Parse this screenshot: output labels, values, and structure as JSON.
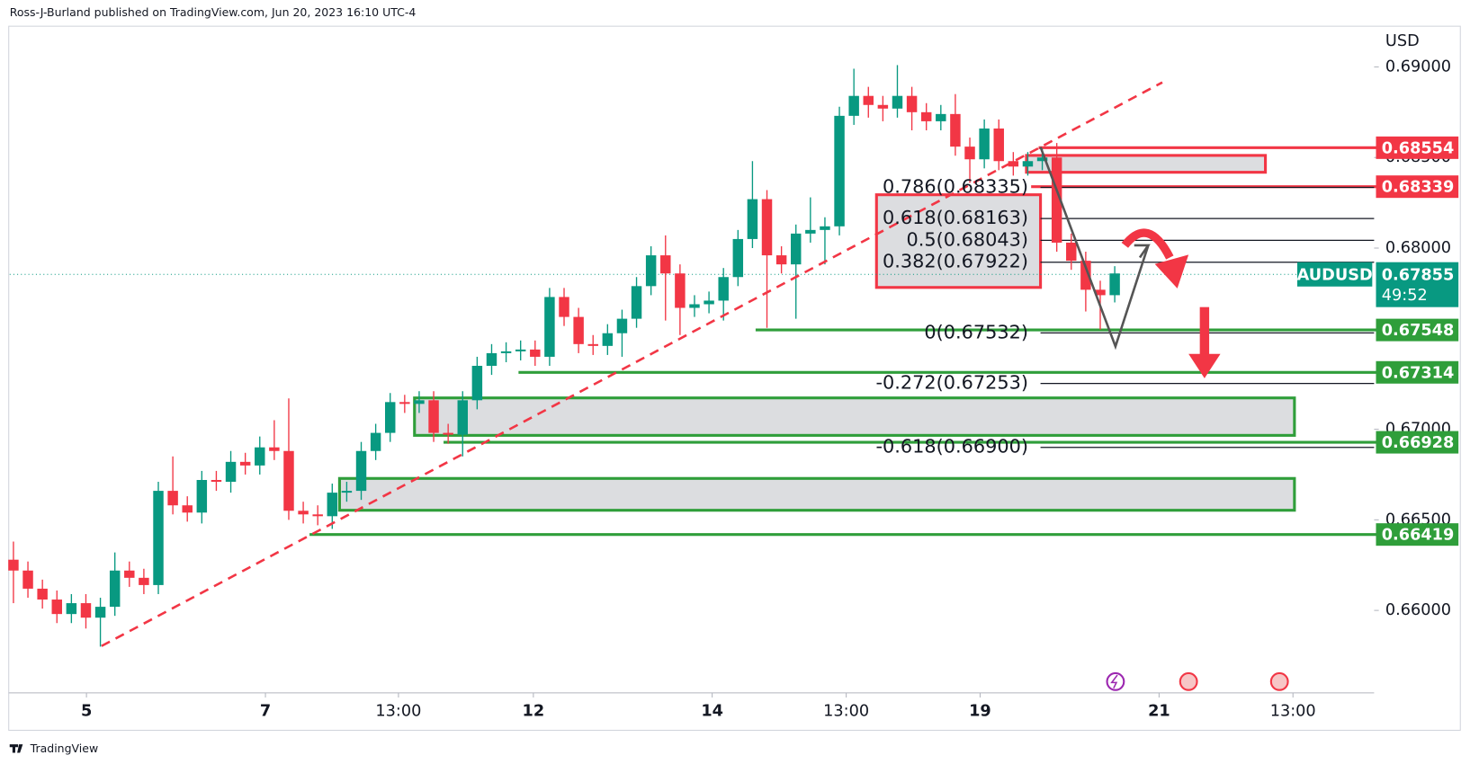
{
  "header": "Ross-J-Burland published on TradingView.com, Jun 20, 2023 16:10 UTC-4",
  "footer": "TradingView",
  "chart_data": {
    "type": "candlestick",
    "symbol": "AUDUSD",
    "currency": "USD",
    "countdown": "49:52",
    "last_price": 0.67855,
    "up_color": "#089981",
    "down_color": "#f23645",
    "x": [
      0,
      1,
      2,
      3,
      4,
      5,
      6,
      7,
      8,
      9,
      10,
      11,
      12,
      13,
      14,
      15,
      16,
      17,
      18,
      19,
      20,
      21,
      22,
      23,
      24,
      25,
      26,
      27,
      28,
      29,
      30,
      31,
      32,
      33,
      34,
      35,
      36,
      37,
      38,
      39,
      40,
      41,
      42,
      43,
      44,
      45,
      46,
      47,
      48,
      49,
      50,
      51,
      52,
      53,
      54,
      55,
      56,
      57,
      58,
      59,
      60,
      61,
      62,
      63,
      64,
      65,
      66,
      67,
      68,
      69,
      70,
      71,
      72,
      73,
      74,
      75,
      76
    ],
    "open": [
      0.6628,
      0.6622,
      0.6612,
      0.6606,
      0.6598,
      0.6604,
      0.6596,
      0.6602,
      0.6622,
      0.6618,
      0.6614,
      0.6666,
      0.6658,
      0.6654,
      0.6672,
      0.6671,
      0.6682,
      0.668,
      0.669,
      0.6688,
      0.6655,
      0.6653,
      0.6652,
      0.6665,
      0.6666,
      0.6688,
      0.6698,
      0.6715,
      0.6714,
      0.6716,
      0.6698,
      0.6697,
      0.6716,
      0.6735,
      0.6742,
      0.6743,
      0.6744,
      0.674,
      0.6773,
      0.6762,
      0.6747,
      0.6746,
      0.6753,
      0.6761,
      0.6779,
      0.6796,
      0.6786,
      0.6767,
      0.6769,
      0.6771,
      0.6784,
      0.6805,
      0.6827,
      0.6796,
      0.6791,
      0.6808,
      0.681,
      0.6812,
      0.6873,
      0.6884,
      0.6879,
      0.6877,
      0.6884,
      0.6875,
      0.687,
      0.6874,
      0.6856,
      0.6849,
      0.6866,
      0.6848,
      0.6845,
      0.6848,
      0.685,
      0.6803,
      0.6793,
      0.6777,
      0.6774
    ],
    "high": [
      0.6638,
      0.6627,
      0.6617,
      0.6611,
      0.6609,
      0.6609,
      0.6607,
      0.6632,
      0.6627,
      0.6623,
      0.6671,
      0.6685,
      0.6663,
      0.6677,
      0.6677,
      0.6688,
      0.6687,
      0.6696,
      0.6705,
      0.6717,
      0.666,
      0.6658,
      0.667,
      0.6671,
      0.6693,
      0.6703,
      0.672,
      0.6719,
      0.6721,
      0.6721,
      0.6703,
      0.6721,
      0.674,
      0.6747,
      0.6748,
      0.6749,
      0.6749,
      0.6778,
      0.6778,
      0.6767,
      0.6752,
      0.6758,
      0.6766,
      0.6784,
      0.6801,
      0.6807,
      0.6791,
      0.6774,
      0.6776,
      0.6789,
      0.681,
      0.6848,
      0.6832,
      0.6801,
      0.6813,
      0.6828,
      0.6817,
      0.6878,
      0.6899,
      0.6889,
      0.6884,
      0.6901,
      0.6889,
      0.688,
      0.6879,
      0.6885,
      0.6861,
      0.6871,
      0.6871,
      0.6853,
      0.6853,
      0.6855,
      0.6858,
      0.6808,
      0.6798,
      0.6782,
      0.679
    ],
    "low": [
      0.6604,
      0.6607,
      0.6601,
      0.6593,
      0.6593,
      0.659,
      0.658,
      0.6597,
      0.6613,
      0.6609,
      0.6609,
      0.6653,
      0.6649,
      0.6648,
      0.6666,
      0.6665,
      0.6675,
      0.6675,
      0.6683,
      0.665,
      0.6648,
      0.6647,
      0.6645,
      0.666,
      0.6661,
      0.6683,
      0.6693,
      0.6709,
      0.6709,
      0.6693,
      0.6692,
      0.6685,
      0.6711,
      0.673,
      0.6737,
      0.6738,
      0.6735,
      0.6735,
      0.6757,
      0.6742,
      0.6741,
      0.6741,
      0.674,
      0.6756,
      0.6774,
      0.676,
      0.6752,
      0.6762,
      0.6764,
      0.676,
      0.6779,
      0.68,
      0.6756,
      0.6786,
      0.6761,
      0.6803,
      0.6791,
      0.6807,
      0.6868,
      0.6872,
      0.687,
      0.6872,
      0.6865,
      0.6865,
      0.6865,
      0.6851,
      0.6836,
      0.6844,
      0.6843,
      0.684,
      0.684,
      0.6843,
      0.6798,
      0.6788,
      0.6765,
      0.6755,
      0.677
    ],
    "close": [
      0.6622,
      0.6612,
      0.6606,
      0.6598,
      0.6604,
      0.6596,
      0.6602,
      0.6622,
      0.6618,
      0.6614,
      0.6666,
      0.6658,
      0.6654,
      0.6672,
      0.6671,
      0.6682,
      0.668,
      0.669,
      0.6688,
      0.6655,
      0.6653,
      0.6652,
      0.6665,
      0.6666,
      0.6688,
      0.6698,
      0.6715,
      0.6714,
      0.6716,
      0.6698,
      0.6697,
      0.6716,
      0.6735,
      0.6742,
      0.6743,
      0.6744,
      0.674,
      0.6773,
      0.6762,
      0.6747,
      0.6746,
      0.6753,
      0.6761,
      0.6779,
      0.6796,
      0.6786,
      0.6767,
      0.6769,
      0.6771,
      0.6784,
      0.6805,
      0.6827,
      0.6796,
      0.6791,
      0.6808,
      0.681,
      0.6812,
      0.6873,
      0.6884,
      0.6879,
      0.6877,
      0.6884,
      0.6875,
      0.687,
      0.6874,
      0.6856,
      0.6849,
      0.6866,
      0.6848,
      0.6845,
      0.6848,
      0.685,
      0.6803,
      0.6793,
      0.6777,
      0.6774,
      0.6786
    ],
    "xlim": [
      -0.26,
      93.9
    ],
    "ylim": [
      0.65545,
      0.69328
    ],
    "xticks": [
      {
        "value": 5.04,
        "label": "5"
      },
      {
        "value": 17.39,
        "label": "7"
      },
      {
        "value": 26.57,
        "label": "13:00"
      },
      {
        "value": 35.88,
        "label": "12"
      },
      {
        "value": 48.22,
        "label": "14"
      },
      {
        "value": 57.47,
        "label": "13:00"
      },
      {
        "value": 66.71,
        "label": "19"
      },
      {
        "value": 79.06,
        "label": "21"
      },
      {
        "value": 88.3,
        "label": "13:00"
      }
    ],
    "yticks": [
      {
        "value": 0.69,
        "label": "0.69000"
      },
      {
        "value": 0.685,
        "label": "0.68500"
      },
      {
        "value": 0.68,
        "label": "0.68000"
      },
      {
        "value": 0.67,
        "label": "0.67000"
      },
      {
        "value": 0.665,
        "label": "0.66500"
      },
      {
        "value": 0.66,
        "label": "0.66000"
      }
    ],
    "levels": [
      {
        "value": 0.68554,
        "color": "#f23645"
      },
      {
        "value": 0.68339,
        "color": "#f23645"
      },
      {
        "value": 0.67548,
        "color": "#2f9e3a"
      },
      {
        "value": 0.67314,
        "color": "#2f9e3a"
      },
      {
        "value": 0.66928,
        "color": "#2f9e3a"
      },
      {
        "value": 0.66419,
        "color": "#2f9e3a"
      }
    ],
    "fib": [
      {
        "value": 0.68335,
        "label": "0.786(0.68335)"
      },
      {
        "value": 0.68163,
        "label": "0.618(0.68163)"
      },
      {
        "value": 0.68043,
        "label": "0.5(0.68043)"
      },
      {
        "value": 0.67922,
        "label": "0.382(0.67922)"
      },
      {
        "value": 0.67532,
        "label": "0(0.67532)"
      },
      {
        "value": 0.67253,
        "label": "-0.272(0.67253)"
      },
      {
        "value": 0.669,
        "label": "-0.618(0.66900)"
      }
    ]
  }
}
